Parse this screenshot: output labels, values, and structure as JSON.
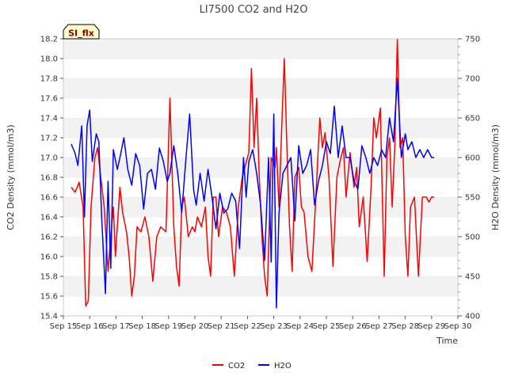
{
  "chart_data": {
    "type": "line",
    "title": "LI7500 CO2 and H2O",
    "xlabel": "Time",
    "ylabel": "CO2 Density (mmol/m3)",
    "y2label": "H2O Density (mmol/m3)",
    "badge": "SI_flx",
    "grid": true,
    "legend_position": "bottom-center",
    "x_ticks": [
      "Sep 15",
      "Sep 16",
      "Sep 17",
      "Sep 18",
      "Sep 19",
      "Sep 20",
      "Sep 21",
      "Sep 22",
      "Sep 23",
      "Sep 24",
      "Sep 25",
      "Sep 26",
      "Sep 27",
      "Sep 28",
      "Sep 29",
      "Sep 30"
    ],
    "xlim": [
      15,
      30
    ],
    "ylim": [
      15.4,
      18.2
    ],
    "y_ticks": [
      "15.4",
      "15.6",
      "15.8",
      "16.0",
      "16.2",
      "16.4",
      "16.6",
      "16.8",
      "17.0",
      "17.2",
      "17.4",
      "17.6",
      "17.8",
      "18.0",
      "18.2"
    ],
    "y2lim": [
      400,
      750
    ],
    "y2_ticks": [
      "400",
      "450",
      "500",
      "550",
      "600",
      "650",
      "700",
      "750"
    ],
    "series": [
      {
        "name": "CO2",
        "axis": "left",
        "color": "#ff0000",
        "x": [
          15.3,
          15.45,
          15.6,
          15.75,
          15.85,
          15.95,
          16.05,
          16.2,
          16.3,
          16.4,
          16.55,
          16.7,
          16.8,
          16.9,
          16.98,
          17.05,
          17.15,
          17.25,
          17.4,
          17.5,
          17.6,
          17.7,
          17.8,
          17.95,
          18.1,
          18.25,
          18.4,
          18.55,
          18.7,
          18.9,
          19.05,
          19.2,
          19.3,
          19.4,
          19.5,
          19.6,
          19.75,
          19.9,
          20.0,
          20.1,
          20.25,
          20.4,
          20.5,
          20.6,
          20.7,
          20.8,
          20.9,
          21.05,
          21.2,
          21.35,
          21.5,
          21.65,
          21.8,
          21.95,
          22.05,
          22.15,
          22.25,
          22.35,
          22.45,
          22.55,
          22.65,
          22.75,
          22.9,
          23.05,
          23.1,
          23.2,
          23.3,
          23.4,
          23.5,
          23.6,
          23.7,
          23.8,
          23.95,
          24.05,
          24.15,
          24.3,
          24.45,
          24.6,
          24.75,
          24.85,
          24.95,
          25.1,
          25.25,
          25.4,
          25.55,
          25.65,
          25.75,
          25.9,
          26.05,
          26.15,
          26.25,
          26.4,
          26.55,
          26.7,
          26.8,
          26.9,
          27.05,
          27.2,
          27.3,
          27.4,
          27.5,
          27.6,
          27.7,
          27.8,
          27.9,
          28.0,
          28.1,
          28.2,
          28.35,
          28.5,
          28.65,
          28.8,
          28.9,
          29.0,
          29.1
        ],
        "y": [
          16.7,
          16.65,
          16.75,
          16.5,
          15.5,
          15.55,
          16.5,
          17.0,
          17.1,
          16.85,
          16.5,
          15.85,
          16.2,
          16.5,
          16.0,
          16.3,
          16.7,
          16.45,
          16.25,
          16.0,
          15.6,
          15.8,
          16.3,
          16.25,
          16.4,
          16.2,
          15.75,
          16.2,
          16.3,
          16.25,
          17.6,
          16.3,
          15.9,
          15.7,
          16.5,
          16.6,
          16.2,
          16.3,
          16.25,
          16.4,
          16.3,
          16.5,
          16.0,
          15.8,
          16.6,
          16.6,
          16.2,
          16.5,
          16.45,
          16.3,
          15.8,
          16.5,
          16.8,
          16.95,
          17.05,
          17.9,
          17.1,
          17.6,
          16.8,
          16.2,
          15.8,
          15.6,
          17.0,
          16.9,
          17.1,
          16.5,
          17.3,
          18.0,
          17.1,
          16.3,
          15.85,
          16.8,
          16.9,
          16.5,
          16.45,
          16.0,
          15.85,
          16.6,
          17.4,
          17.1,
          17.25,
          16.8,
          15.9,
          16.8,
          17.0,
          17.1,
          16.6,
          17.05,
          16.7,
          16.9,
          16.3,
          16.6,
          15.95,
          16.7,
          17.4,
          17.2,
          17.5,
          15.8,
          17.0,
          17.2,
          16.5,
          17.1,
          18.2,
          17.1,
          17.2,
          16.2,
          15.8,
          16.5,
          16.6,
          15.8,
          16.6,
          16.6,
          16.55,
          16.6,
          16.6
        ],
        "line_width": 1.5
      },
      {
        "name": "H2O",
        "axis": "right",
        "color": "#0000ff",
        "x": [
          15.3,
          15.45,
          15.55,
          15.7,
          15.8,
          15.9,
          16.0,
          16.1,
          16.25,
          16.35,
          16.45,
          16.6,
          16.7,
          16.8,
          16.9,
          17.05,
          17.15,
          17.3,
          17.45,
          17.6,
          17.75,
          17.9,
          18.05,
          18.2,
          18.35,
          18.5,
          18.65,
          18.8,
          18.95,
          19.05,
          19.2,
          19.35,
          19.5,
          19.65,
          19.8,
          19.95,
          20.05,
          20.2,
          20.35,
          20.5,
          20.65,
          20.8,
          20.95,
          21.1,
          21.25,
          21.4,
          21.55,
          21.7,
          21.85,
          21.95,
          22.05,
          22.2,
          22.35,
          22.5,
          22.65,
          22.8,
          22.9,
          23.0,
          23.1,
          23.2,
          23.35,
          23.5,
          23.65,
          23.8,
          23.95,
          24.1,
          24.25,
          24.4,
          24.55,
          24.7,
          24.85,
          25.0,
          25.15,
          25.3,
          25.45,
          25.6,
          25.75,
          25.9,
          26.05,
          26.2,
          26.35,
          26.5,
          26.65,
          26.8,
          26.95,
          27.1,
          27.25,
          27.4,
          27.55,
          27.7,
          27.85,
          28.0,
          28.1,
          28.25,
          28.4,
          28.55,
          28.7,
          28.85,
          29.0,
          29.1
        ],
        "y": [
          617,
          605,
          590,
          640,
          525,
          640,
          660,
          595,
          630,
          620,
          530,
          428,
          570,
          460,
          610,
          585,
          600,
          625,
          585,
          565,
          605,
          590,
          535,
          580,
          585,
          560,
          612,
          595,
          570,
          580,
          615,
          580,
          530,
          595,
          655,
          560,
          540,
          580,
          545,
          585,
          550,
          510,
          555,
          530,
          535,
          555,
          545,
          485,
          600,
          550,
          595,
          610,
          580,
          540,
          470,
          600,
          468,
          655,
          410,
          530,
          580,
          590,
          600,
          520,
          615,
          580,
          590,
          610,
          540,
          570,
          590,
          620,
          605,
          665,
          600,
          640,
          600,
          600,
          570,
          560,
          615,
          600,
          580,
          600,
          590,
          610,
          600,
          650,
          620,
          700,
          600,
          630,
          610,
          620,
          600,
          610,
          600,
          610,
          600,
          600
        ],
        "line_width": 1.5
      }
    ]
  }
}
